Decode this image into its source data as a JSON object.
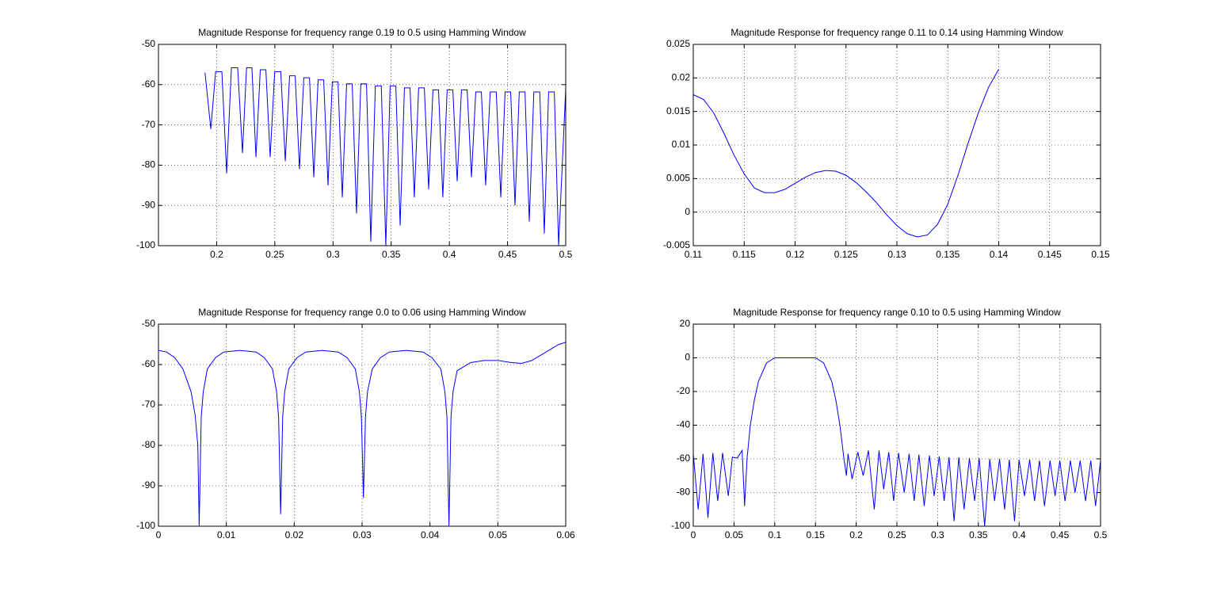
{
  "chart_data": [
    {
      "type": "line",
      "title": "Magnitude Response for frequency range 0.19 to 0.5 using Hamming Window",
      "color": "#0000ff",
      "grid": true,
      "xlim": [
        0.15,
        0.5
      ],
      "xticks": [
        0.2,
        0.25,
        0.3,
        0.35,
        0.4,
        0.45,
        0.5
      ],
      "ylim": [
        -100,
        -50
      ],
      "yticks": [
        -100,
        -90,
        -80,
        -70,
        -60,
        -50
      ],
      "x": [
        0.19,
        0.195,
        0.1991,
        0.2045,
        0.2086,
        0.2127,
        0.2181,
        0.2222,
        0.2257,
        0.2303,
        0.2338,
        0.2375,
        0.2423,
        0.246,
        0.2499,
        0.2551,
        0.259,
        0.2627,
        0.2675,
        0.2712,
        0.2749,
        0.2798,
        0.2835,
        0.2872,
        0.292,
        0.2957,
        0.2994,
        0.3043,
        0.308,
        0.3117,
        0.3165,
        0.3202,
        0.3239,
        0.3288,
        0.3325,
        0.3364,
        0.3415,
        0.3454,
        0.3491,
        0.354,
        0.3577,
        0.3614,
        0.3662,
        0.3699,
        0.3736,
        0.3785,
        0.3822,
        0.3859,
        0.3907,
        0.3944,
        0.3981,
        0.403,
        0.4067,
        0.4104,
        0.4153,
        0.419,
        0.4227,
        0.4275,
        0.4312,
        0.4351,
        0.4403,
        0.4442,
        0.4479,
        0.4527,
        0.4564,
        0.4601,
        0.465,
        0.4687,
        0.4726,
        0.4777,
        0.4816,
        0.4853,
        0.4902,
        0.4939,
        0.5
      ],
      "values": [
        -57,
        -71,
        -56.8,
        -56.8,
        -82,
        -55.8,
        -55.8,
        -77,
        -55.8,
        -55.8,
        -78,
        -56.3,
        -56.3,
        -78,
        -56.8,
        -56.8,
        -79,
        -57.8,
        -57.8,
        -81,
        -58.3,
        -58.3,
        -83,
        -58.8,
        -58.8,
        -85,
        -59.3,
        -59.3,
        -88,
        -59.8,
        -59.8,
        -92,
        -59.8,
        -59.8,
        -99,
        -60.3,
        -60.3,
        -100,
        -60.3,
        -60.3,
        -95,
        -60.8,
        -60.8,
        -88,
        -60.8,
        -60.8,
        -86,
        -61.3,
        -61.3,
        -88,
        -61.3,
        -61.3,
        -84,
        -61.3,
        -61.3,
        -83,
        -61.8,
        -61.8,
        -85,
        -61.8,
        -61.8,
        -88,
        -61.8,
        -61.8,
        -90,
        -61.8,
        -61.8,
        -94,
        -61.8,
        -61.8,
        -97,
        -61.8,
        -61.8,
        -100,
        -61
      ]
    },
    {
      "type": "line",
      "title": "Magnitude Response for frequency range 0.11 to 0.14 using Hamming Window",
      "color": "#0000ff",
      "grid": true,
      "xlim": [
        0.11,
        0.15
      ],
      "xticks": [
        0.11,
        0.115,
        0.12,
        0.125,
        0.13,
        0.135,
        0.14,
        0.145,
        0.15
      ],
      "ylim": [
        -0.005,
        0.025
      ],
      "yticks": [
        -0.005,
        0,
        0.005,
        0.01,
        0.015,
        0.02,
        0.025
      ],
      "x": [
        0.11,
        0.111,
        0.112,
        0.113,
        0.114,
        0.115,
        0.116,
        0.117,
        0.118,
        0.119,
        0.12,
        0.121,
        0.122,
        0.123,
        0.124,
        0.125,
        0.126,
        0.127,
        0.128,
        0.129,
        0.13,
        0.131,
        0.132,
        0.133,
        0.134,
        0.135,
        0.136,
        0.137,
        0.138,
        0.139,
        0.14
      ],
      "values": [
        0.0175,
        0.0168,
        0.0148,
        0.0118,
        0.0085,
        0.0057,
        0.0036,
        0.0029,
        0.0029,
        0.0034,
        0.0043,
        0.0052,
        0.0059,
        0.0062,
        0.0061,
        0.0055,
        0.0044,
        0.003,
        0.0014,
        -0.0004,
        -0.002,
        -0.0032,
        -0.0037,
        -0.0034,
        -0.0018,
        0.0012,
        0.0055,
        0.0103,
        0.0148,
        0.0186,
        0.0213
      ]
    },
    {
      "type": "line",
      "title": "Magnitude Response for frequency range 0.0 to 0.06 using Hamming Window",
      "color": "#0000ff",
      "grid": true,
      "xlim": [
        0,
        0.06
      ],
      "xticks": [
        0,
        0.01,
        0.02,
        0.03,
        0.04,
        0.05,
        0.06
      ],
      "ylim": [
        -100,
        -50
      ],
      "yticks": [
        -100,
        -90,
        -80,
        -70,
        -60,
        -50
      ],
      "x": [
        0,
        0.0012,
        0.0024,
        0.0036,
        0.0048,
        0.0054,
        0.0058,
        0.006,
        0.0063,
        0.0066,
        0.0072,
        0.0084,
        0.0096,
        0.012,
        0.0144,
        0.0156,
        0.0168,
        0.0174,
        0.0177,
        0.018,
        0.0183,
        0.0186,
        0.0192,
        0.0204,
        0.0217,
        0.0241,
        0.0265,
        0.0278,
        0.029,
        0.0296,
        0.0299,
        0.0302,
        0.0305,
        0.0308,
        0.0315,
        0.0327,
        0.034,
        0.0365,
        0.039,
        0.0403,
        0.0416,
        0.0422,
        0.0425,
        0.0428,
        0.0431,
        0.0434,
        0.044,
        0.046,
        0.048,
        0.05,
        0.052,
        0.0535,
        0.055,
        0.057,
        0.059,
        0.06
      ],
      "values": [
        -56.5,
        -56.9,
        -58.3,
        -61.1,
        -66.7,
        -72.5,
        -80,
        -100,
        -73,
        -66.7,
        -61.1,
        -58.3,
        -56.9,
        -56.5,
        -56.9,
        -58.3,
        -61.1,
        -66.7,
        -73,
        -97,
        -73,
        -66.7,
        -61.1,
        -58.3,
        -56.9,
        -56.5,
        -56.9,
        -58.3,
        -61.1,
        -66.7,
        -73,
        -93,
        -73,
        -66.7,
        -61.1,
        -58.3,
        -56.9,
        -56.5,
        -56.9,
        -58.3,
        -61.1,
        -66.7,
        -73,
        -100,
        -73,
        -66.7,
        -61.5,
        -59.5,
        -59,
        -59,
        -59.5,
        -59.7,
        -59,
        -57,
        -55,
        -54.5
      ]
    },
    {
      "type": "line",
      "title": "Magnitude Response for frequency range 0.10 to 0.5 using Hamming Window",
      "color": "#0000ff",
      "grid": true,
      "xlim": [
        0,
        0.5
      ],
      "xticks": [
        0,
        0.05,
        0.1,
        0.15,
        0.2,
        0.25,
        0.3,
        0.35,
        0.4,
        0.45,
        0.5
      ],
      "ylim": [
        -100,
        20
      ],
      "yticks": [
        -100,
        -80,
        -60,
        -40,
        -20,
        0,
        20
      ],
      "x": [
        0,
        0.006,
        0.012,
        0.018,
        0.024,
        0.03,
        0.036,
        0.043,
        0.048,
        0.054,
        0.06,
        0.063,
        0.066,
        0.07,
        0.075,
        0.08,
        0.09,
        0.1,
        0.15,
        0.16,
        0.17,
        0.175,
        0.18,
        0.185,
        0.188,
        0.19,
        0.195,
        0.202,
        0.2086,
        0.215,
        0.2222,
        0.228,
        0.2338,
        0.24,
        0.246,
        0.252,
        0.259,
        0.265,
        0.2712,
        0.277,
        0.2835,
        0.29,
        0.2957,
        0.302,
        0.308,
        0.314,
        0.3202,
        0.326,
        0.3325,
        0.339,
        0.3454,
        0.351,
        0.3577,
        0.364,
        0.3699,
        0.376,
        0.3822,
        0.388,
        0.3944,
        0.4,
        0.4067,
        0.413,
        0.419,
        0.425,
        0.4312,
        0.438,
        0.4442,
        0.45,
        0.4564,
        0.463,
        0.4687,
        0.475,
        0.4816,
        0.488,
        0.4939,
        0.5
      ],
      "values": [
        -57,
        -90,
        -57,
        -95,
        -56.5,
        -85,
        -56.5,
        -82,
        -59,
        -59.5,
        -55,
        -88,
        -60,
        -40,
        -25,
        -14,
        -3,
        0,
        0,
        -3,
        -14,
        -25,
        -40,
        -60,
        -70,
        -57,
        -72,
        -56,
        -70,
        -55,
        -90,
        -55,
        -78,
        -56,
        -85,
        -56.5,
        -80,
        -57,
        -85,
        -57.5,
        -88,
        -58,
        -82,
        -58.5,
        -85,
        -59,
        -97,
        -59,
        -90,
        -59.5,
        -85,
        -59.5,
        -100,
        -60,
        -85,
        -60,
        -90,
        -60.5,
        -97,
        -60.5,
        -82,
        -60.5,
        -85,
        -61,
        -88,
        -61,
        -82,
        -61,
        -85,
        -61,
        -80,
        -61,
        -85,
        -61,
        -88,
        -61
      ]
    }
  ]
}
